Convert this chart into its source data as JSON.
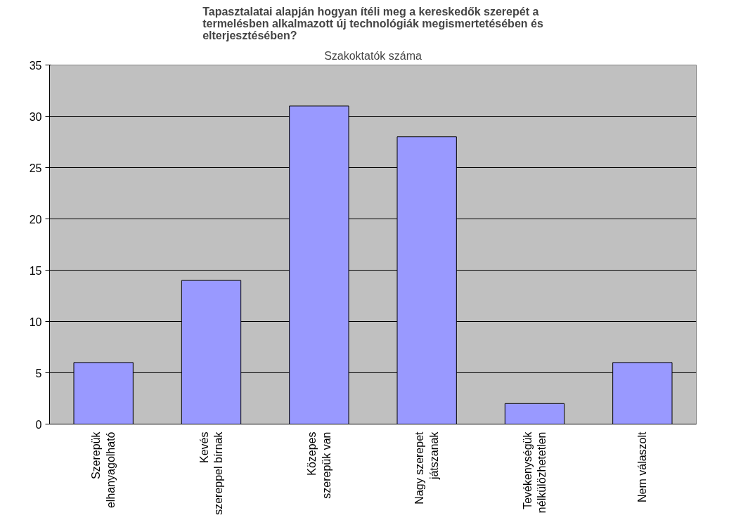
{
  "chart_data": {
    "type": "bar",
    "title": "Tapasztalatai alapján hogyan ítéli meg a kereskedők szerepét a\ntermelésben alkalmazott új technológiák megismertetésében és\nelterjesztésében?",
    "subtitle": "Szakoktatók száma",
    "categories": [
      "Szerepük\nelhanyagolható",
      "Kevés\nszereppel bírnak",
      "Közepes\nszerepük van",
      "Nagy szerepet\njátszanak",
      "Tevékenységük\nnélkülözhetetlen",
      "Nem válaszolt"
    ],
    "values": [
      6,
      14,
      31,
      28,
      2,
      6
    ],
    "color": "#9999ff",
    "ylim": [
      0,
      35
    ],
    "yticks": [
      0,
      5,
      10,
      15,
      20,
      25,
      30,
      35
    ],
    "grid": "y"
  }
}
